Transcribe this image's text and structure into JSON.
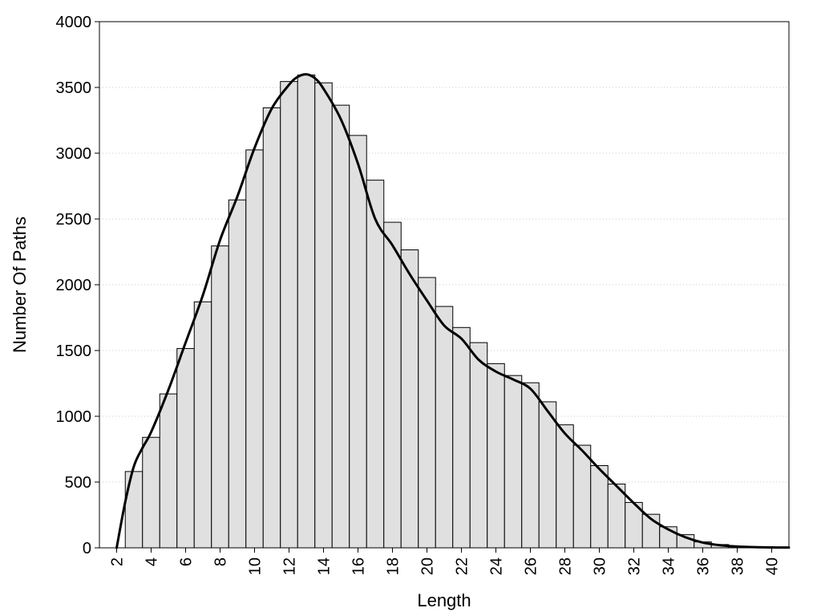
{
  "chart_data": {
    "type": "bar",
    "title": "",
    "xlabel": "Length",
    "ylabel": "Number Of Paths",
    "xlim": [
      1,
      41
    ],
    "ylim": [
      0,
      4000
    ],
    "yticks": [
      0,
      500,
      1000,
      1500,
      2000,
      2500,
      3000,
      3500,
      4000
    ],
    "xticks": [
      2,
      4,
      6,
      8,
      10,
      12,
      14,
      16,
      18,
      20,
      22,
      24,
      26,
      28,
      30,
      32,
      34,
      36,
      38,
      40
    ],
    "grid": "horizontal dotted",
    "legend": "none",
    "categories": [
      3,
      4,
      5,
      6,
      7,
      8,
      9,
      10,
      11,
      12,
      13,
      14,
      15,
      16,
      17,
      18,
      19,
      20,
      21,
      22,
      23,
      24,
      25,
      26,
      27,
      28,
      29,
      30,
      31,
      32,
      33,
      34,
      35,
      36,
      37,
      38,
      39,
      40
    ],
    "values": [
      580,
      840,
      1170,
      1515,
      1870,
      2295,
      2645,
      3025,
      3345,
      3545,
      3595,
      3535,
      3365,
      3135,
      2795,
      2475,
      2265,
      2055,
      1835,
      1675,
      1560,
      1400,
      1310,
      1255,
      1110,
      935,
      780,
      625,
      485,
      345,
      255,
      160,
      100,
      45,
      25,
      12,
      6,
      3
    ],
    "curve": {
      "x": [
        2,
        2.5,
        3,
        3.5,
        4,
        5,
        6,
        7,
        8,
        9,
        10,
        11,
        12,
        12.5,
        13,
        13.5,
        14,
        15,
        16,
        17,
        18,
        19,
        20,
        21,
        22,
        23,
        24,
        25,
        26,
        27,
        28,
        29,
        30,
        31,
        32,
        33,
        34,
        35,
        36,
        37,
        38,
        39,
        40,
        41
      ],
      "y": [
        0,
        350,
        620,
        760,
        880,
        1200,
        1560,
        1920,
        2340,
        2670,
        3040,
        3340,
        3520,
        3580,
        3600,
        3570,
        3490,
        3260,
        2920,
        2500,
        2300,
        2080,
        1880,
        1690,
        1590,
        1430,
        1340,
        1280,
        1210,
        1040,
        870,
        740,
        600,
        470,
        340,
        220,
        140,
        80,
        40,
        20,
        10,
        5,
        3,
        2
      ]
    },
    "colors": {
      "bar_fill": "#e0e0e0",
      "bar_stroke": "#000000",
      "curve": "#000000",
      "grid": "#c8c8c8"
    }
  }
}
